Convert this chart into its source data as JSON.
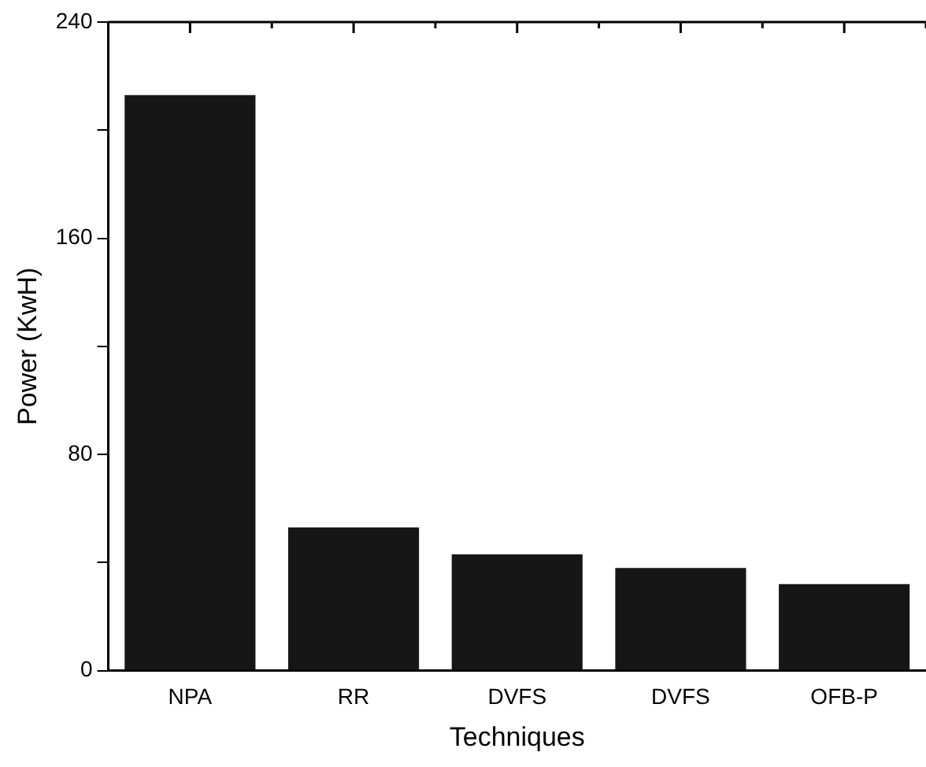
{
  "chart_data": {
    "type": "bar",
    "xlabel": "Techniques",
    "ylabel": "Power (KwH)",
    "categories": [
      "NPA",
      "RR",
      "DVFS",
      "DVFS",
      "OFB-P"
    ],
    "values": [
      213,
      53,
      43,
      38,
      32
    ],
    "color": "#161616",
    "ylim": [
      0,
      240
    ],
    "yticks": [
      0,
      {
        "value": 40,
        "label": null
      },
      80,
      {
        "value": 120,
        "label": null
      },
      160,
      {
        "value": 200,
        "label": null
      },
      240
    ],
    "grid": false,
    "legend": false
  }
}
